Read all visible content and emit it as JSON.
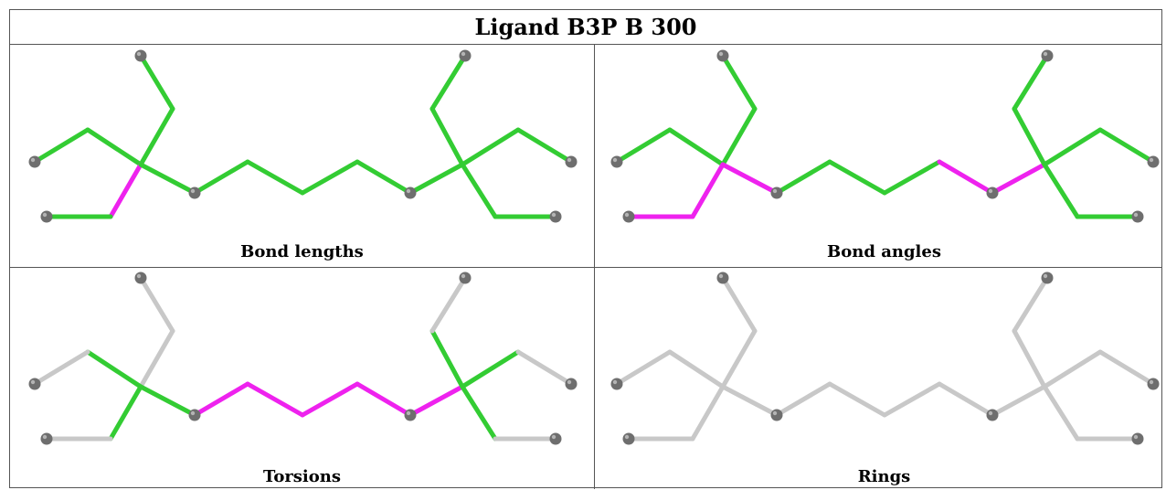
{
  "title": "Ligand B3P B 300",
  "colors": {
    "ok": "#33cc33",
    "outlier": "#ee22ee",
    "neutral": "#c8c8c8",
    "atom": "#6e6e6e"
  },
  "panels": [
    {
      "caption": "Bond lengths",
      "bond_colors": [
        "ok",
        "ok",
        "ok",
        "ok",
        "outlier",
        "ok",
        "ok",
        "ok",
        "ok",
        "ok",
        "ok",
        "ok",
        "ok",
        "ok",
        "ok",
        "ok",
        "ok",
        "ok"
      ]
    },
    {
      "caption": "Bond angles",
      "bond_colors": [
        "ok",
        "ok",
        "ok",
        "ok",
        "outlier",
        "outlier",
        "outlier",
        "ok",
        "ok",
        "ok",
        "outlier",
        "outlier",
        "ok",
        "ok",
        "ok",
        "ok",
        "ok",
        "ok"
      ]
    },
    {
      "caption": "Torsions",
      "bond_colors": [
        "neutral",
        "neutral",
        "ok",
        "neutral",
        "ok",
        "neutral",
        "ok",
        "outlier",
        "outlier",
        "outlier",
        "outlier",
        "outlier",
        "ok",
        "neutral",
        "ok",
        "neutral",
        "ok",
        "neutral"
      ]
    },
    {
      "caption": "Rings",
      "bond_colors": [
        "neutral",
        "neutral",
        "neutral",
        "neutral",
        "neutral",
        "neutral",
        "neutral",
        "neutral",
        "neutral",
        "neutral",
        "neutral",
        "neutral",
        "neutral",
        "neutral",
        "neutral",
        "neutral",
        "neutral",
        "neutral"
      ]
    }
  ]
}
